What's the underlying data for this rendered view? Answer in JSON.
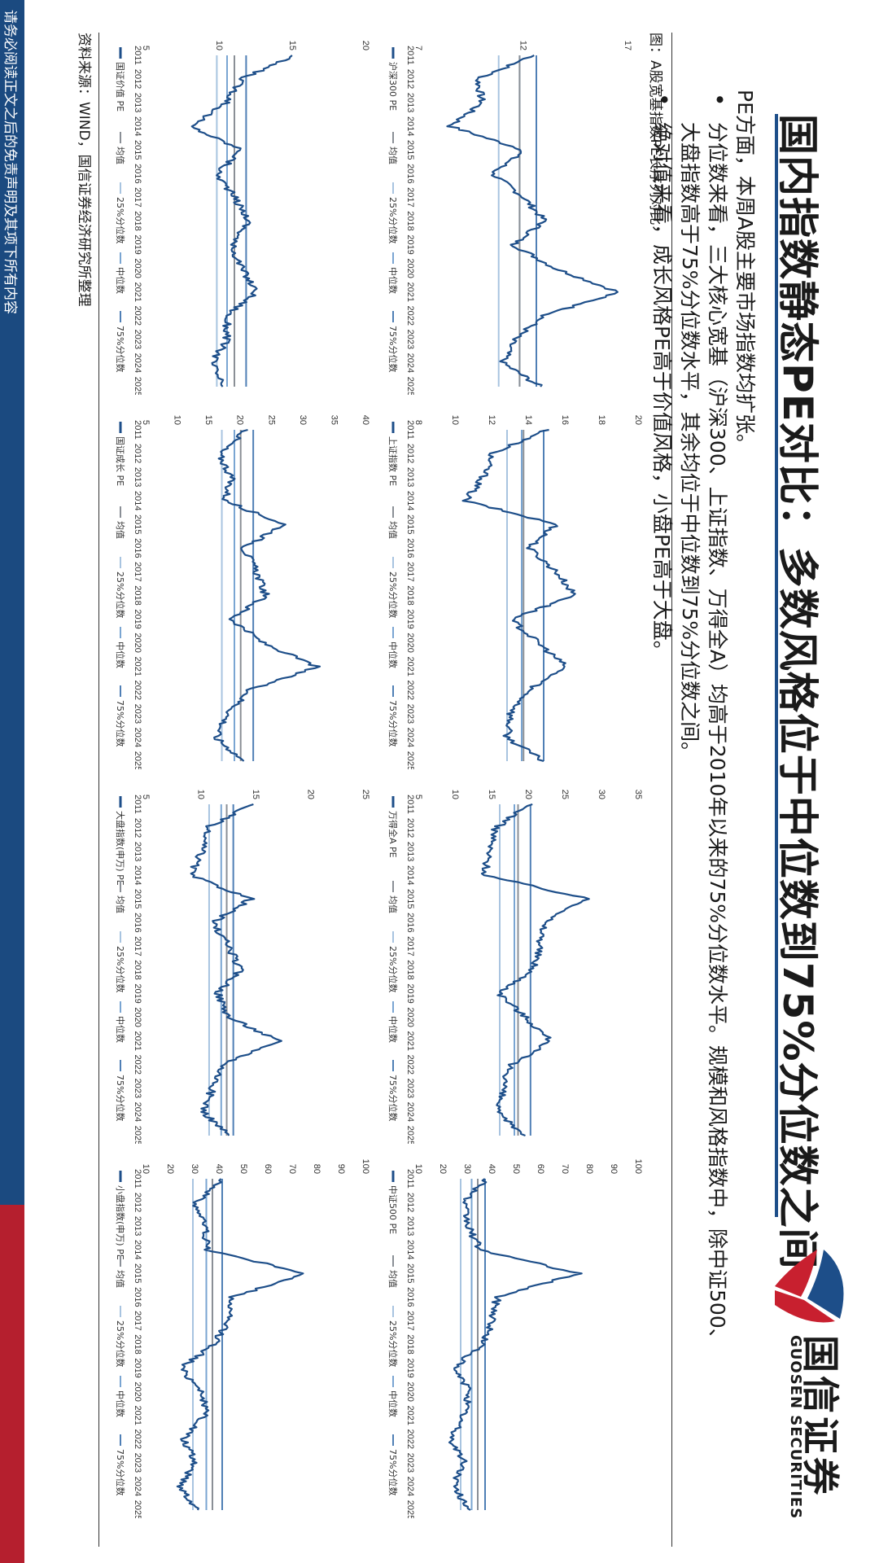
{
  "title": "国内指数静态PE对比：多数风格位于中位数到75%分位数之间",
  "logo": {
    "cn": "国信证券",
    "en": "GUOSEN SECURITIES"
  },
  "body": {
    "line1": "PE方面，本周A股主要市场指数均扩张。",
    "line2": "分位数来看，三大核心宽基（沪深300、上证指数、万得全A）均高于2010年以来的75%分位数水平。规模和风格指数中，除中证500、",
    "line3": "大盘指数高于75%分位数水平，其余均位于中位数到75%分位数之间。",
    "line4": "绝对值来看，成长风格PE高于价值风格，小盘PE高于大盘。",
    "bullet_char": "•"
  },
  "figure_title": "图：A股宽基指数PE长序列对比",
  "source": "资料来源：WIND，国信证券经济研究所整理",
  "footer": "请务必阅读正文之后的免责声明及其项下所有内容",
  "colors": {
    "main": "#1d4e89",
    "mean": "#8a8f96",
    "p25": "#a8c4e0",
    "median": "#7aa5d2",
    "p75": "#4f7fb5",
    "title_rule": "#1d4e89",
    "footer": "#1b4a80",
    "footer_accent": "#b51f2e"
  },
  "legend_labels": [
    "均值",
    "25%分位数",
    "中位数",
    "75%分位数"
  ],
  "chart_data": [
    {
      "type": "line",
      "series_name": "沪深300 PE",
      "x": [
        "2011",
        "2012",
        "2013",
        "2014",
        "2015",
        "2016",
        "2017",
        "2018",
        "2019",
        "2020",
        "2021",
        "2022",
        "2023",
        "2024",
        "2025"
      ],
      "y_ticks": [
        7,
        12,
        17
      ],
      "ylim": [
        7,
        17.5
      ],
      "values": [
        12.5,
        9.8,
        10.0,
        8.5,
        12.0,
        10.5,
        12.0,
        13.0,
        11.5,
        13.5,
        16.5,
        13.0,
        11.5,
        11.0,
        12.8
      ],
      "ref": {
        "mean": 11.8,
        "p25": 10.8,
        "median": 11.8,
        "p75": 12.6
      }
    },
    {
      "type": "line",
      "series_name": "上证指数 PE",
      "x": [
        "2011",
        "2012",
        "2013",
        "2014",
        "2015",
        "2016",
        "2017",
        "2018",
        "2019",
        "2020",
        "2021",
        "2022",
        "2023",
        "2024",
        "2025"
      ],
      "y_ticks": [
        8,
        10,
        12,
        14,
        16,
        18,
        20
      ],
      "ylim": [
        8,
        20
      ],
      "values": [
        15.0,
        12.0,
        11.5,
        10.5,
        15.5,
        14.0,
        15.5,
        16.5,
        13.0,
        14.5,
        16.0,
        14.0,
        13.0,
        12.8,
        14.8
      ],
      "ref": {
        "mean": 13.7,
        "p25": 12.8,
        "median": 13.6,
        "p75": 14.8
      }
    },
    {
      "type": "line",
      "series_name": "万得全A PE",
      "x": [
        "2011",
        "2012",
        "2013",
        "2014",
        "2015",
        "2016",
        "2017",
        "2018",
        "2019",
        "2020",
        "2021",
        "2022",
        "2023",
        "2024",
        "2025"
      ],
      "y_ticks": [
        5,
        10,
        15,
        20,
        25,
        30,
        35
      ],
      "ylim": [
        5,
        35
      ],
      "values": [
        20.0,
        15.5,
        14.5,
        14.0,
        28.0,
        22.0,
        21.5,
        20.5,
        16.0,
        19.5,
        23.0,
        17.5,
        16.5,
        15.5,
        19.5
      ],
      "ref": {
        "mean": 18.5,
        "p25": 16.0,
        "median": 18.0,
        "p75": 20.2
      }
    },
    {
      "type": "line",
      "series_name": "中证500 PE",
      "x": [
        "2011",
        "2012",
        "2013",
        "2014",
        "2015",
        "2016",
        "2017",
        "2018",
        "2019",
        "2020",
        "2021",
        "2022",
        "2023",
        "2024",
        "2025"
      ],
      "y_ticks": [
        10,
        20,
        30,
        40,
        50,
        60,
        70,
        80,
        90,
        100
      ],
      "ylim": [
        10,
        100
      ],
      "values": [
        38.0,
        28.0,
        30.0,
        35.0,
        75.0,
        42.0,
        40.0,
        36.0,
        24.0,
        31.0,
        28.0,
        23.0,
        28.5,
        24.0,
        31.0
      ],
      "ref": {
        "mean": 34.0,
        "p25": 27.0,
        "median": 31.5,
        "p75": 37.0
      }
    },
    {
      "type": "line",
      "series_name": "国证价值 PE",
      "x": [
        "2011",
        "2012",
        "2013",
        "2014",
        "2015",
        "2016",
        "2017",
        "2018",
        "2019",
        "2020",
        "2021",
        "2022",
        "2023",
        "2024",
        "2025"
      ],
      "y_ticks": [
        5,
        10,
        15,
        20
      ],
      "ylim": [
        5,
        20
      ],
      "values": [
        15.0,
        11.5,
        10.5,
        8.0,
        11.5,
        9.8,
        11.0,
        12.0,
        10.8,
        11.5,
        12.5,
        10.5,
        10.5,
        9.5,
        10.2
      ],
      "ref": {
        "mean": 11.0,
        "p25": 9.8,
        "median": 10.5,
        "p75": 11.8
      }
    },
    {
      "type": "line",
      "series_name": "国证成长 PE",
      "x": [
        "2011",
        "2012",
        "2013",
        "2014",
        "2015",
        "2016",
        "2017",
        "2018",
        "2019",
        "2020",
        "2021",
        "2022",
        "2023",
        "2024",
        "2025"
      ],
      "y_ticks": [
        5,
        10,
        15,
        20,
        25,
        30,
        35,
        40
      ],
      "ylim": [
        5,
        40
      ],
      "values": [
        21.0,
        16.5,
        18.5,
        17.5,
        27.0,
        20.5,
        22.5,
        24.0,
        18.5,
        23.5,
        32.0,
        21.5,
        18.0,
        16.0,
        20.5
      ],
      "ref": {
        "mean": 20.0,
        "p25": 17.0,
        "median": 19.0,
        "p75": 22.0
      }
    },
    {
      "type": "line",
      "series_name": "大盘指数(申万) PE",
      "x": [
        "2011",
        "2012",
        "2013",
        "2014",
        "2015",
        "2016",
        "2017",
        "2018",
        "2019",
        "2020",
        "2021",
        "2022",
        "2023",
        "2024",
        "2025"
      ],
      "y_ticks": [
        5,
        10,
        15,
        20,
        25
      ],
      "ylim": [
        5,
        25
      ],
      "values": [
        14.5,
        10.5,
        10.0,
        9.0,
        14.5,
        11.0,
        12.5,
        13.5,
        11.5,
        12.5,
        17.0,
        12.0,
        11.0,
        10.2,
        12.5
      ],
      "ref": {
        "mean": 12.3,
        "p25": 10.7,
        "median": 11.8,
        "p75": 12.9
      }
    },
    {
      "type": "line",
      "series_name": "小盘指数(申万) PE",
      "x": [
        "2011",
        "2012",
        "2013",
        "2014",
        "2015",
        "2016",
        "2017",
        "2018",
        "2019",
        "2020",
        "2021",
        "2022",
        "2023",
        "2024",
        "2025"
      ],
      "y_ticks": [
        10,
        20,
        30,
        40,
        50,
        60,
        70,
        80,
        90,
        100
      ],
      "ylim": [
        10,
        100
      ],
      "values": [
        42.0,
        30.0,
        34.0,
        35.0,
        75.0,
        45.0,
        43.0,
        38.0,
        24.0,
        33.0,
        34.0,
        25.0,
        30.0,
        24.0,
        31.0
      ],
      "ref": {
        "mean": 37.0,
        "p25": 29.0,
        "median": 34.5,
        "p75": 41.0
      }
    }
  ]
}
